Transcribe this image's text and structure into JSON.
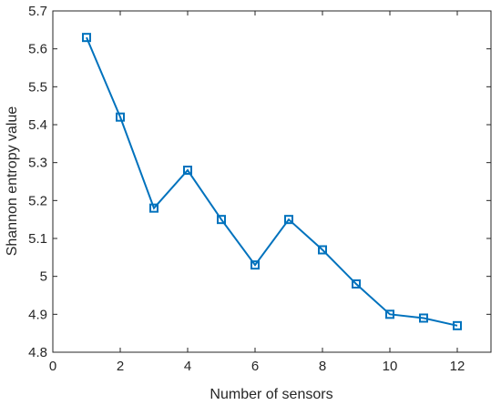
{
  "chart_data": {
    "type": "line",
    "title": "",
    "xlabel": "Number of sensors",
    "ylabel": "Shannon entropy value",
    "xlim": [
      0,
      13
    ],
    "ylim": [
      4.8,
      5.7
    ],
    "xticks": [
      0,
      2,
      4,
      6,
      8,
      10,
      12
    ],
    "xtick_labels": [
      "0",
      "2",
      "4",
      "6",
      "8",
      "10",
      "12"
    ],
    "yticks": [
      4.8,
      4.9,
      5.0,
      5.1,
      5.2,
      5.3,
      5.4,
      5.5,
      5.6,
      5.7
    ],
    "ytick_labels": [
      "4.8",
      "4.9",
      "5",
      "5.1",
      "5.2",
      "5.3",
      "5.4",
      "5.5",
      "5.6",
      "5.7"
    ],
    "grid": false,
    "marker": "square",
    "color": "#0072BD",
    "x": [
      1,
      2,
      3,
      4,
      5,
      6,
      7,
      8,
      9,
      10,
      11,
      12
    ],
    "series": [
      {
        "values": [
          5.63,
          5.42,
          5.18,
          5.28,
          5.15,
          5.03,
          5.15,
          5.07,
          4.98,
          4.9,
          4.89,
          4.87
        ]
      }
    ]
  }
}
